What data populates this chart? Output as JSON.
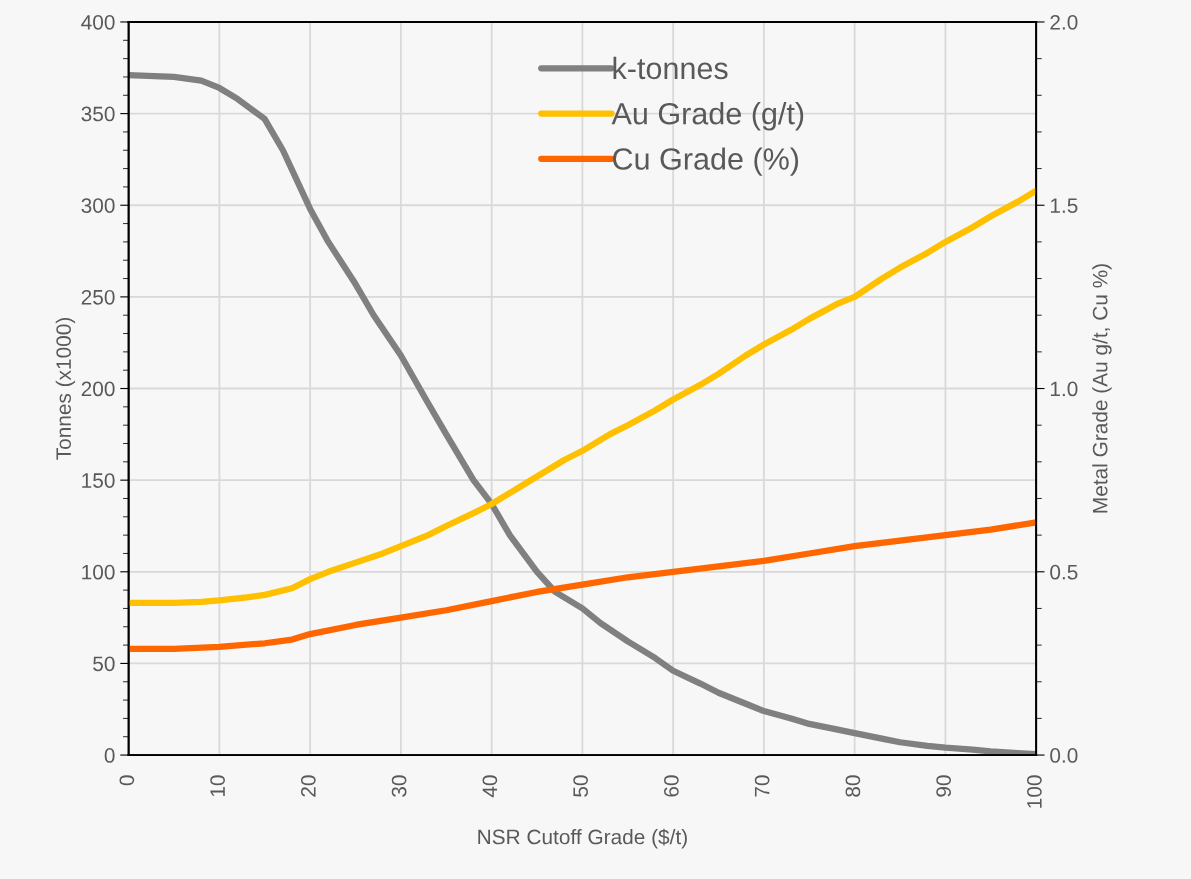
{
  "chart_data": {
    "type": "line",
    "xlabel": "NSR Cutoff Grade ($/t)",
    "ylabel": "Tonnes (x1000)",
    "y2label": "Metal Grade (Au g/t, Cu %)",
    "xlim": [
      0,
      100
    ],
    "xticks": [
      0,
      10,
      20,
      30,
      40,
      50,
      60,
      70,
      80,
      90,
      100
    ],
    "ylim": [
      0,
      400
    ],
    "yticks": [
      0,
      50,
      100,
      150,
      200,
      250,
      300,
      350,
      400
    ],
    "y2lim": [
      0,
      2
    ],
    "y2ticks": [
      {
        "value": 0,
        "label": "0.0"
      },
      {
        "value": 0.5,
        "label": "0.5"
      },
      {
        "value": 1,
        "label": "1.0"
      },
      {
        "value": 1.5,
        "label": "1.5"
      },
      {
        "value": 2,
        "label": "2.0"
      }
    ],
    "grid": true,
    "legend": "top",
    "marker": "none",
    "line_style": "solid",
    "series": [
      {
        "name": "k-tonnes",
        "color": "#808080",
        "x": [
          0,
          5,
          8,
          10,
          12,
          15,
          17,
          20,
          22,
          25,
          27,
          30,
          33,
          35,
          38,
          40,
          42,
          45,
          47,
          50,
          52,
          55,
          58,
          60,
          63,
          65,
          68,
          70,
          73,
          75,
          78,
          80,
          83,
          85,
          88,
          90,
          93,
          95,
          98,
          100
        ],
        "values": [
          371,
          370,
          368,
          364,
          358,
          347,
          330,
          298,
          280,
          257,
          240,
          218,
          192,
          175,
          150,
          137,
          120,
          100,
          89,
          80,
          72,
          62,
          53,
          46,
          39,
          34,
          28,
          24,
          20,
          17,
          14,
          12,
          9,
          7,
          5,
          4,
          3,
          2,
          1,
          0.5
        ]
      },
      {
        "name": "Au Grade (g/t)",
        "color": "#ffc000",
        "axis": "y2",
        "x": [
          0,
          5,
          8,
          10,
          13,
          15,
          18,
          20,
          22,
          25,
          28,
          30,
          33,
          35,
          38,
          40,
          43,
          45,
          48,
          50,
          53,
          55,
          58,
          60,
          63,
          65,
          68,
          70,
          73,
          75,
          78,
          80,
          83,
          85,
          88,
          90,
          93,
          95,
          98,
          100
        ],
        "values": [
          0.415,
          0.415,
          0.418,
          0.422,
          0.43,
          0.437,
          0.455,
          0.48,
          0.5,
          0.525,
          0.55,
          0.57,
          0.6,
          0.625,
          0.66,
          0.685,
          0.73,
          0.76,
          0.805,
          0.83,
          0.875,
          0.9,
          0.94,
          0.97,
          1.01,
          1.04,
          1.09,
          1.12,
          1.16,
          1.19,
          1.23,
          1.25,
          1.3,
          1.33,
          1.37,
          1.4,
          1.44,
          1.47,
          1.51,
          1.54
        ]
      },
      {
        "name": "Cu Grade (%)",
        "color": "#ff6600",
        "axis": "y2",
        "x": [
          0,
          5,
          10,
          15,
          18,
          20,
          25,
          30,
          35,
          40,
          45,
          50,
          55,
          60,
          65,
          70,
          75,
          80,
          85,
          90,
          95,
          100
        ],
        "values": [
          0.29,
          0.29,
          0.295,
          0.305,
          0.315,
          0.33,
          0.355,
          0.375,
          0.395,
          0.42,
          0.445,
          0.465,
          0.485,
          0.5,
          0.515,
          0.53,
          0.55,
          0.57,
          0.585,
          0.6,
          0.615,
          0.635
        ]
      }
    ]
  }
}
